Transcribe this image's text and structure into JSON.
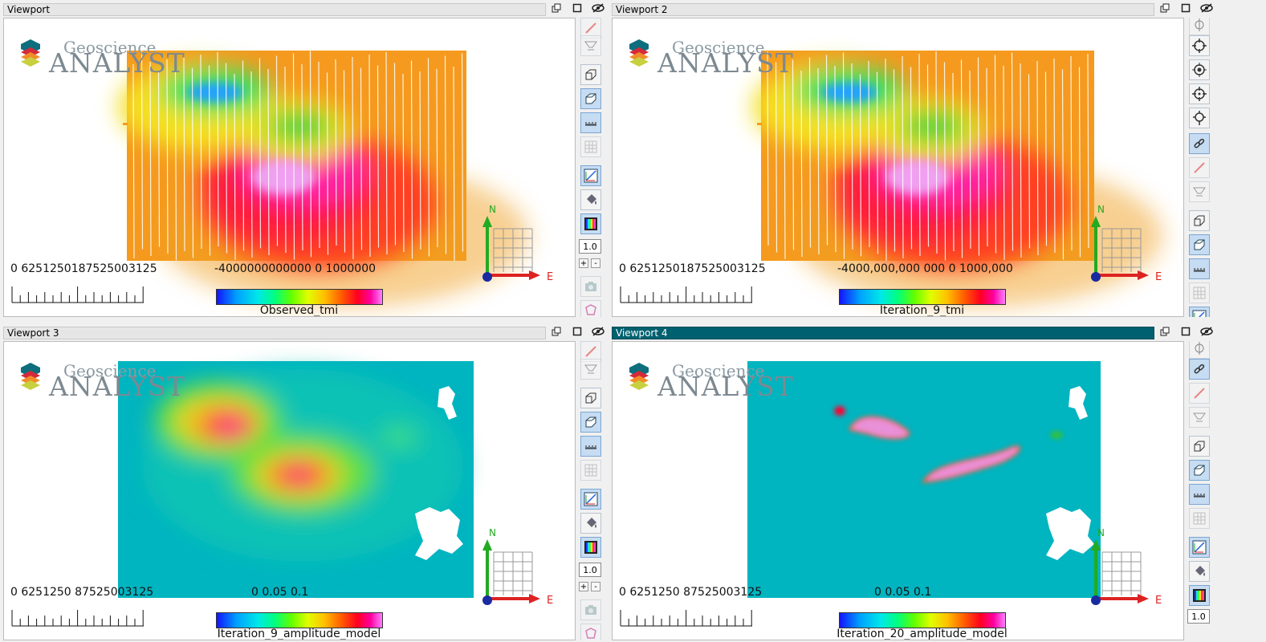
{
  "viewports": [
    {
      "title": "Viewport",
      "active": false,
      "logo": {
        "line1": "Geoscience",
        "line2": "ANALYST"
      },
      "scale_labels": "0    6251250187525003125",
      "colorbar": {
        "ticks": "-4000000000000 0  1000000",
        "name": "Observed_tmi"
      },
      "zoom": "1.0",
      "map_type": "tmi"
    },
    {
      "title": "Viewport 2",
      "active": false,
      "logo": {
        "line1": "Geoscience",
        "line2": "ANALYST"
      },
      "scale_labels": "0    6251250187525003125",
      "colorbar": {
        "ticks": "-4000,000,000 000  0  1000,000",
        "name": "Iteration_9_tmi"
      },
      "zoom": "1.0",
      "map_type": "tmi"
    },
    {
      "title": "Viewport 3",
      "active": false,
      "logo": {
        "line1": "Geoscience",
        "line2": "ANALYST"
      },
      "scale_labels": "0    6251250 87525003125",
      "colorbar": {
        "ticks": "0        0.05        0.1",
        "name": "Iteration_9_amplitude_model"
      },
      "zoom": "1.0",
      "map_type": "amp9"
    },
    {
      "title": "Viewport 4",
      "active": true,
      "logo": {
        "line1": "Geoscience",
        "line2": "ANALYST"
      },
      "scale_labels": "0    6251250 87525003125",
      "colorbar": {
        "ticks": "0        0.05        0.1",
        "name": "Iteration_20_amplitude_model"
      },
      "zoom": "1.0",
      "map_type": "amp20"
    }
  ],
  "axis_labels": {
    "north": "N",
    "east": "E"
  },
  "window_buttons": [
    "restore-icon",
    "maximize-icon",
    "visibility-icon"
  ],
  "colors": {
    "active_title": "#00606f",
    "model_background": "#00b4c0"
  }
}
